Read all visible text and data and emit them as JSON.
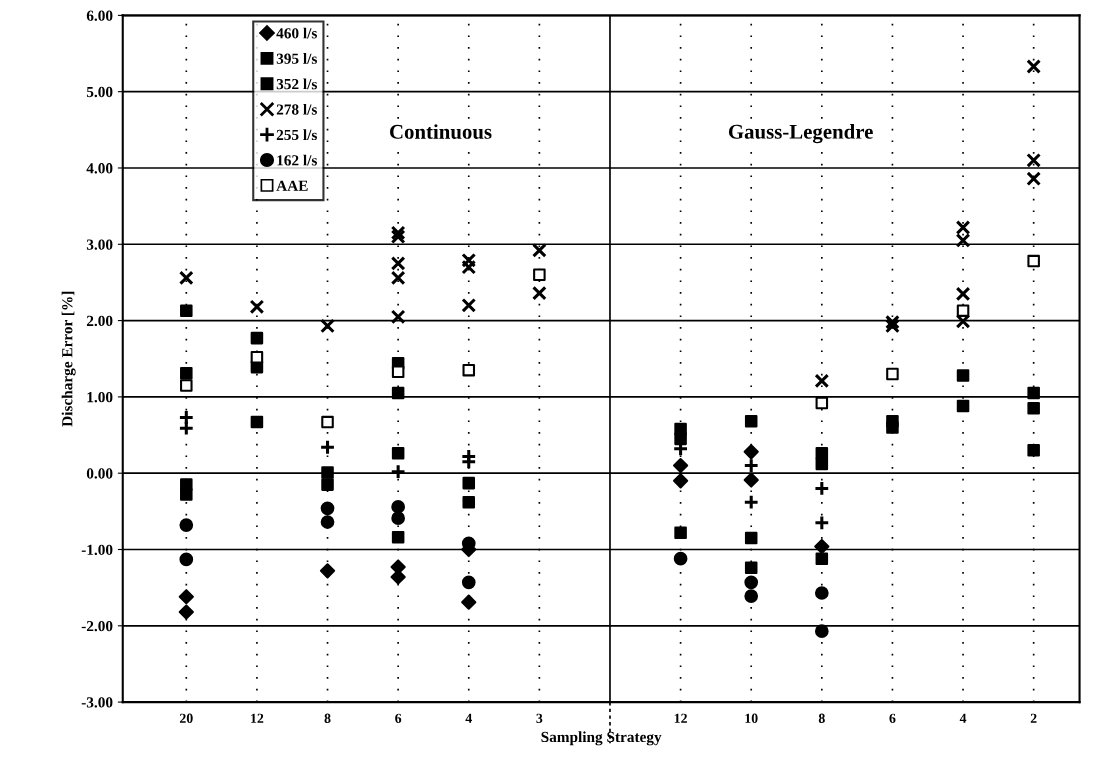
{
  "chart_data": {
    "type": "scatter",
    "xlabel": "Sampling Strategy",
    "ylabel": "Discharge Error [%]",
    "categories": [
      "20",
      "12",
      "8",
      "6",
      "4",
      "3",
      null,
      "12",
      "10",
      "8",
      "6",
      "4",
      "2"
    ],
    "ylim": [
      -3,
      6
    ],
    "yticks": [
      {
        "value": -3,
        "label": "-3.00"
      },
      {
        "value": -2,
        "label": "-2.00"
      },
      {
        "value": -1,
        "label": "-1.00"
      },
      {
        "value": 0,
        "label": "0.00"
      },
      {
        "value": 1,
        "label": "1.00"
      },
      {
        "value": 2,
        "label": "2.00"
      },
      {
        "value": 3,
        "label": "3.00"
      },
      {
        "value": 4,
        "label": "4.00"
      },
      {
        "value": 5,
        "label": "5.00"
      },
      {
        "value": 6,
        "label": "6.00"
      }
    ],
    "grid": true,
    "legend": "top left",
    "annotations": [
      "Continuous",
      "Gauss-Legendre"
    ],
    "series": [
      {
        "name": "460 l/s",
        "color": "#000000",
        "marker": "diamond",
        "values": [
          -1.62,
          null,
          -1.28,
          -1.23,
          -1.0,
          null,
          null,
          0.1,
          0.28,
          -0.96,
          null,
          null,
          null
        ]
      },
      {
        "color": "#000000",
        "marker": "diamond",
        "values": [
          -1.82,
          null,
          null,
          -1.36,
          -1.69,
          null,
          null,
          -0.1,
          -0.09,
          null,
          null,
          null,
          null
        ]
      },
      {
        "name": "395 l/s",
        "color": "#000000",
        "marker": "square",
        "values": [
          2.13,
          1.77,
          0.01,
          1.44,
          -0.13,
          null,
          null,
          0.58,
          null,
          0.26,
          0.68,
          1.28,
          1.05
        ]
      },
      {
        "color": "#000000",
        "marker": "square",
        "values": [
          -0.15,
          0.67,
          null,
          0.26,
          null,
          null,
          null,
          -0.78,
          -0.85,
          -1.12,
          null,
          null,
          0.3
        ]
      },
      {
        "name": "352 l/s",
        "color": "#000000",
        "marker": "square",
        "values": [
          1.31,
          1.39,
          -0.15,
          1.05,
          -0.38,
          null,
          null,
          0.45,
          0.68,
          0.12,
          0.6,
          0.88,
          0.85
        ]
      },
      {
        "color": "#000000",
        "marker": "square",
        "values": [
          -0.28,
          null,
          null,
          -0.84,
          null,
          null,
          null,
          null,
          -1.24,
          null,
          null,
          null,
          null
        ]
      },
      {
        "name": "278 l/s",
        "color": "#000000",
        "marker": "cross",
        "values": [
          2.56,
          2.18,
          1.93,
          3.15,
          2.79,
          2.92,
          null,
          null,
          null,
          1.21,
          1.98,
          3.22,
          5.33
        ]
      },
      {
        "color": "#000000",
        "marker": "cross",
        "values": [
          null,
          null,
          null,
          3.1,
          2.7,
          2.36,
          null,
          null,
          null,
          null,
          1.93,
          3.05,
          4.1
        ]
      },
      {
        "color": "#000000",
        "marker": "cross",
        "values": [
          null,
          null,
          null,
          2.75,
          2.2,
          null,
          null,
          null,
          null,
          null,
          null,
          2.35,
          3.86
        ]
      },
      {
        "color": "#000000",
        "marker": "cross",
        "values": [
          null,
          null,
          null,
          2.56,
          null,
          null,
          null,
          null,
          null,
          null,
          null,
          1.99,
          null
        ]
      },
      {
        "color": "#000000",
        "marker": "cross",
        "values": [
          null,
          null,
          null,
          2.05,
          null,
          null,
          null,
          null,
          null,
          null,
          null,
          null,
          null
        ]
      },
      {
        "name": "255 l/s",
        "color": "#000000",
        "marker": "plus",
        "values": [
          0.73,
          null,
          0.34,
          0.02,
          0.22,
          null,
          null,
          0.32,
          0.1,
          -0.2,
          null,
          null,
          null
        ]
      },
      {
        "color": "#000000",
        "marker": "plus",
        "values": [
          0.59,
          null,
          null,
          null,
          0.15,
          null,
          null,
          null,
          -0.38,
          -0.65,
          null,
          null,
          null
        ]
      },
      {
        "name": "162 l/s",
        "color": "#000000",
        "marker": "circle",
        "values": [
          -0.68,
          null,
          -0.46,
          -0.44,
          -0.92,
          null,
          null,
          null,
          -1.43,
          -1.57,
          null,
          null,
          null
        ]
      },
      {
        "color": "#000000",
        "marker": "circle",
        "values": [
          -1.13,
          null,
          -0.64,
          -0.59,
          -1.43,
          null,
          null,
          -1.12,
          -1.61,
          -2.07,
          null,
          null,
          null
        ]
      },
      {
        "name": "AAE",
        "color": "#ffffff",
        "marker": "square",
        "values": [
          1.15,
          1.52,
          0.67,
          1.33,
          1.35,
          2.6,
          null,
          null,
          null,
          0.92,
          1.3,
          2.13,
          2.78
        ]
      }
    ]
  }
}
